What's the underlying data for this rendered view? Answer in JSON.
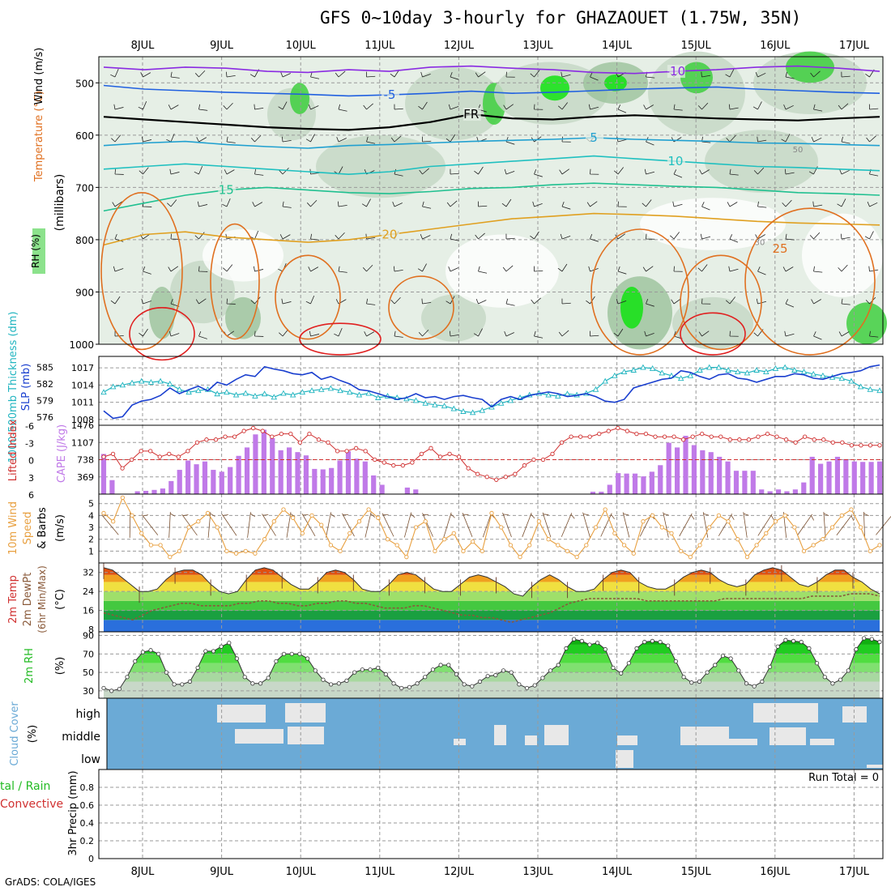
{
  "title": "GFS 0~10day 3-hourly for GHAZAOUET (1.75W, 35N)",
  "credit": "GrADS: COLA/IGES",
  "days": [
    "8JUL",
    "9JUL",
    "10JUL",
    "11JUL",
    "12JUL",
    "13JUL",
    "14JUL",
    "15JUL",
    "16JUL",
    "17JUL"
  ],
  "colors": {
    "grid": "#9a9a9a",
    "rh_light": "#e6efe6",
    "rh_mid": "#c5d8c5",
    "rh_high": "#9fc49f",
    "rh_top": "#3fcf3f",
    "rh_max": "#12e312",
    "slp": "#1a3fcf",
    "thick": "#22b5c0",
    "li": "#d03030",
    "cape": "#c07ae8",
    "wind10": "#e8a040",
    "dew": "#8a5a3a",
    "cloud": "#6baad6",
    "cloud_gap": "#e8e8e8",
    "rh2m": "#22bb22"
  },
  "chart_data": [
    {
      "name": "upper-air",
      "type": "heatmap",
      "ylabel_parts": [
        "RH (%)",
        "Temperature (°C)",
        "Wind (m/s)"
      ],
      "ylabel_unit": "(millibars)",
      "yticks": [
        500,
        600,
        700,
        800,
        900,
        1000
      ],
      "ylim": [
        450,
        1000
      ],
      "isotherms": [
        {
          "label": "-10",
          "p": [
            470,
            475,
            470,
            472,
            478,
            480,
            475,
            478,
            470,
            468,
            472,
            475,
            480,
            482,
            478,
            475,
            470,
            468,
            472,
            478
          ]
        },
        {
          "label": "-5",
          "p": [
            505,
            512,
            515,
            518,
            520,
            522,
            525,
            523,
            520,
            516,
            520,
            518,
            515,
            512,
            510,
            508,
            512,
            515,
            518,
            520
          ]
        },
        {
          "label": "FR",
          "p": [
            565,
            570,
            575,
            580,
            585,
            588,
            590,
            585,
            575,
            560,
            568,
            570,
            565,
            562,
            565,
            568,
            570,
            572,
            568,
            565
          ]
        },
        {
          "label": "5",
          "p": [
            620,
            615,
            612,
            618,
            622,
            625,
            620,
            618,
            615,
            612,
            610,
            608,
            605,
            608,
            610,
            612,
            615,
            616,
            618,
            620
          ]
        },
        {
          "label": "10",
          "p": [
            665,
            660,
            655,
            660,
            665,
            670,
            675,
            670,
            660,
            655,
            650,
            645,
            640,
            645,
            650,
            655,
            660,
            662,
            665,
            668
          ]
        },
        {
          "label": "15",
          "p": [
            745,
            730,
            715,
            705,
            700,
            705,
            710,
            712,
            708,
            702,
            700,
            695,
            692,
            695,
            698,
            700,
            705,
            710,
            712,
            715
          ]
        },
        {
          "label": "20",
          "p": [
            810,
            790,
            785,
            795,
            800,
            805,
            800,
            790,
            780,
            770,
            760,
            755,
            750,
            752,
            755,
            760,
            765,
            768,
            770,
            772
          ]
        }
      ],
      "contour_labels": [
        "-10",
        "-5",
        "FR",
        "5",
        "10",
        "15",
        "20",
        "25",
        "30",
        "50"
      ]
    },
    {
      "name": "slp-thickness",
      "type": "line",
      "ylabel_left": "1000-500mb Thickness (dm)",
      "ylabel_right": "SLP (mb)",
      "yticks_left": [
        576,
        579,
        582,
        585
      ],
      "yticks_right": [
        1008,
        1011,
        1014,
        1017
      ],
      "ylim_right": [
        1007,
        1019
      ],
      "series": [
        {
          "name": "SLP (mb)",
          "values": [
            1009.5,
            1008.2,
            1008.5,
            1010.5,
            1011.2,
            1011.5,
            1012.2,
            1013.5,
            1012.5,
            1013.2,
            1013.8,
            1013.0,
            1014.5,
            1014.0,
            1015.0,
            1015.8,
            1015.5,
            1017.2,
            1016.8,
            1016.5,
            1016.0,
            1015.8,
            1016.2,
            1015.0,
            1015.5,
            1014.8,
            1014.2,
            1013.2,
            1013.0,
            1012.5,
            1012.0,
            1011.5,
            1011.8,
            1012.5,
            1011.8,
            1012.0,
            1011.5,
            1012.0,
            1012.2,
            1011.8,
            1011.5,
            1010.2,
            1011.5,
            1012.0,
            1011.5,
            1012.2,
            1012.5,
            1012.8,
            1012.5,
            1012.0,
            1012.2,
            1012.5,
            1012.0,
            1011.2,
            1011.0,
            1011.5,
            1013.5,
            1014.0,
            1014.5,
            1015.0,
            1015.2,
            1016.5,
            1016.2,
            1015.5,
            1015.0,
            1015.8,
            1016.0,
            1015.2,
            1015.0,
            1014.5,
            1015.0,
            1015.5,
            1015.5,
            1016.0,
            1015.8,
            1015.2,
            1015.0,
            1015.5,
            1016.0,
            1016.2,
            1016.5,
            1017.2,
            1017.5
          ]
        },
        {
          "name": "Thickness (dm)",
          "values": [
            580.5,
            581.5,
            581.8,
            582.2,
            582.5,
            582.3,
            582.5,
            582.0,
            581.0,
            580.5,
            580.8,
            581.0,
            580.2,
            580.5,
            580.0,
            580.3,
            579.8,
            580.2,
            579.6,
            580.3,
            580.0,
            580.5,
            580.8,
            581.0,
            581.2,
            580.8,
            580.5,
            580.0,
            580.3,
            579.5,
            579.8,
            579.5,
            579.3,
            579.0,
            578.5,
            578.2,
            578.0,
            577.5,
            577.0,
            576.8,
            577.2,
            577.8,
            578.5,
            579.0,
            579.5,
            580.0,
            580.3,
            580.0,
            579.8,
            580.2,
            580.0,
            580.3,
            581.0,
            582.5,
            583.5,
            584.2,
            584.5,
            585.0,
            584.8,
            584.0,
            583.5,
            583.0,
            583.5,
            584.5,
            585.0,
            585.0,
            584.5,
            584.2,
            584.0,
            584.5,
            584.2,
            584.8,
            585.0,
            584.5,
            584.2,
            583.8,
            583.5,
            583.2,
            583.0,
            582.5,
            581.5,
            581.0,
            580.8
          ]
        }
      ]
    },
    {
      "name": "lifted-index-cape",
      "type": "bar",
      "ylabel_left": "Lifted Index",
      "ylabel_right": "CAPE (J/kg)",
      "yticks_left": [
        "-6",
        "-3",
        "0",
        "3",
        "6"
      ],
      "yticks_right": [
        369,
        738,
        1107,
        1476
      ],
      "ylim_right": [
        0,
        1476
      ],
      "series": [
        {
          "name": "CAPE (J/kg)",
          "values": [
            860,
            300,
            0,
            0,
            60,
            70,
            90,
            120,
            280,
            520,
            720,
            640,
            700,
            520,
            480,
            580,
            820,
            1000,
            1280,
            1380,
            1200,
            940,
            1000,
            900,
            830,
            540,
            530,
            560,
            720,
            920,
            760,
            700,
            400,
            200,
            0,
            0,
            140,
            100,
            0,
            0,
            0,
            0,
            0,
            0,
            0,
            0,
            0,
            0,
            0,
            0,
            0,
            0,
            0,
            0,
            0,
            0,
            0,
            0,
            50,
            50,
            200,
            450,
            440,
            440,
            380,
            480,
            620,
            1100,
            1000,
            1250,
            1050,
            940,
            900,
            800,
            700,
            500,
            500,
            500,
            100,
            60,
            100,
            60,
            100,
            250,
            800,
            650,
            700,
            800,
            750,
            700,
            690,
            690,
            700
          ]
        },
        {
          "name": "Lifted Index",
          "values": [
            -0.5,
            -1,
            1.5,
            0,
            -1.5,
            -1.5,
            -0.5,
            -1,
            -0.5,
            -1.5,
            -3,
            -3.5,
            -3.5,
            -4,
            -4,
            -5,
            -5.5,
            -5,
            -4,
            -4.5,
            -4.5,
            -3,
            -4.5,
            -3.5,
            -3,
            -1.5,
            -1.5,
            -2,
            -1.5,
            0,
            0.5,
            1,
            1,
            0.5,
            -1,
            -2,
            -0.5,
            -1,
            -0.5,
            1.5,
            2.5,
            3,
            3.5,
            3,
            2.5,
            1,
            0,
            0,
            -1,
            -3,
            -4,
            -4,
            -4,
            -4.5,
            -5,
            -5.5,
            -5,
            -4.5,
            -4.5,
            -4,
            -4,
            -4,
            -3.5,
            -4,
            -4.5,
            -4,
            -4,
            -3.5,
            -3.5,
            -3.5,
            -4,
            -4.5,
            -4,
            -3.5,
            -3,
            -4,
            -3.5,
            -3.5,
            -3,
            -3,
            -2.5,
            -2.5,
            -2.5,
            -2.5
          ]
        }
      ]
    },
    {
      "name": "wind10m",
      "type": "line",
      "ylabel": "10m Wind Speed & Barbs (m/s)",
      "yticks": [
        1,
        2,
        3,
        4,
        5
      ],
      "ylim": [
        0,
        5.8
      ],
      "series": [
        {
          "name": "Speed",
          "values": [
            4.2,
            3.5,
            5.5,
            4.0,
            2.5,
            1.5,
            1.5,
            0.5,
            1.0,
            3.0,
            3.5,
            4.2,
            3.0,
            1.0,
            0.8,
            1.0,
            0.8,
            2.0,
            3.5,
            4.5,
            3.8,
            2.5,
            4.0,
            3.2,
            1.5,
            1.0,
            2.5,
            3.5,
            4.5,
            3.8,
            2.0,
            1.5,
            0.5,
            3.0,
            3.5,
            1.0,
            2.0,
            2.5,
            1.0,
            1.8,
            1.0,
            4.2,
            3.0,
            1.5,
            0.5,
            1.5,
            3.5,
            2.0,
            1.5,
            1.0,
            0.5,
            1.5,
            3.0,
            4.5,
            2.5,
            1.5,
            0.8,
            3.5,
            4.0,
            3.0,
            2.5,
            1.0,
            0.5,
            1.5,
            3.0,
            4.0,
            3.5,
            2.0,
            0.5,
            1.5,
            2.5,
            3.5,
            4.0,
            3.0,
            1.0,
            1.5,
            2.0,
            3.0,
            4.0,
            4.5,
            3.0,
            1.0,
            1.5
          ]
        }
      ]
    },
    {
      "name": "temp2m",
      "type": "area",
      "ylabel": "2m Temp 2m DewPt (6hr Min/Max) (°C)",
      "yticks": [
        8,
        16,
        24,
        32
      ],
      "ylim": [
        7,
        36
      ],
      "series": [
        {
          "name": "2m Temp",
          "values": [
            34,
            33,
            30,
            27,
            24,
            24,
            25,
            29,
            32,
            33,
            33,
            31,
            27,
            24,
            23,
            24,
            29,
            33,
            34,
            33,
            30,
            27,
            25,
            25,
            28,
            32,
            33,
            32,
            29,
            25,
            24,
            24,
            27,
            31,
            32,
            31,
            28,
            25,
            24,
            24,
            27,
            30,
            31,
            30,
            28,
            26,
            23,
            22,
            26,
            29,
            31,
            29,
            26,
            24,
            24,
            25,
            29,
            32,
            33,
            32,
            28,
            26,
            25,
            25,
            27,
            30,
            32,
            33,
            32,
            29,
            27,
            26,
            27,
            31,
            33,
            34,
            33,
            30,
            27,
            26,
            28,
            31,
            33,
            33,
            30,
            28,
            25,
            23
          ]
        },
        {
          "name": "2m DewPt",
          "values": [
            15,
            14,
            13,
            12,
            14,
            16,
            17,
            18,
            19,
            19,
            18,
            18,
            18,
            18,
            19,
            19,
            20,
            20,
            19,
            19,
            18,
            18,
            19,
            19,
            20,
            20,
            19,
            19,
            18,
            17,
            17,
            17,
            18,
            18,
            17,
            16,
            15,
            14,
            14,
            13,
            13,
            12,
            11,
            12,
            13,
            14,
            15,
            17,
            19,
            20,
            21,
            21,
            21,
            21,
            21,
            21,
            20,
            20,
            20,
            20,
            20,
            20,
            20,
            20,
            21,
            21,
            21,
            21,
            21,
            21,
            21,
            21,
            21,
            22,
            22,
            22,
            22,
            23,
            23,
            23,
            22
          ]
        }
      ]
    },
    {
      "name": "rh2m",
      "type": "area",
      "ylabel": "2m RH (%)",
      "yticks": [
        30,
        50,
        70,
        90
      ],
      "ylim": [
        22,
        94
      ],
      "series": [
        {
          "name": "2m RH",
          "values": [
            33,
            30,
            32,
            45,
            62,
            72,
            74,
            70,
            50,
            37,
            37,
            40,
            55,
            73,
            73,
            78,
            82,
            65,
            45,
            38,
            38,
            44,
            62,
            70,
            70,
            70,
            65,
            52,
            42,
            37,
            38,
            41,
            50,
            53,
            53,
            55,
            48,
            38,
            33,
            34,
            38,
            45,
            53,
            58,
            58,
            48,
            37,
            35,
            40,
            46,
            47,
            52,
            50,
            37,
            33,
            36,
            44,
            52,
            58,
            76,
            86,
            84,
            80,
            82,
            75,
            55,
            49,
            60,
            76,
            83,
            84,
            83,
            79,
            62,
            45,
            39,
            40,
            50,
            58,
            68,
            65,
            52,
            38,
            35,
            40,
            56,
            78,
            85,
            84,
            83,
            76,
            60,
            45,
            38,
            42,
            52,
            75,
            87,
            86,
            83
          ]
        }
      ]
    },
    {
      "name": "cloud",
      "type": "bar",
      "ylabel": "Cloud Cover (%)",
      "yticks": [
        "high",
        "middle",
        "low"
      ]
    },
    {
      "name": "precip",
      "type": "bar",
      "ylabel_parts": [
        "tal / Rain",
        "Convective"
      ],
      "ylabel": "3hr Precip (mm)",
      "yticks": [
        "0",
        "0.2",
        "0.4",
        "0.6",
        "0.8"
      ],
      "ylim": [
        0,
        1
      ],
      "run_total": "Run Total = 0",
      "values": []
    }
  ]
}
